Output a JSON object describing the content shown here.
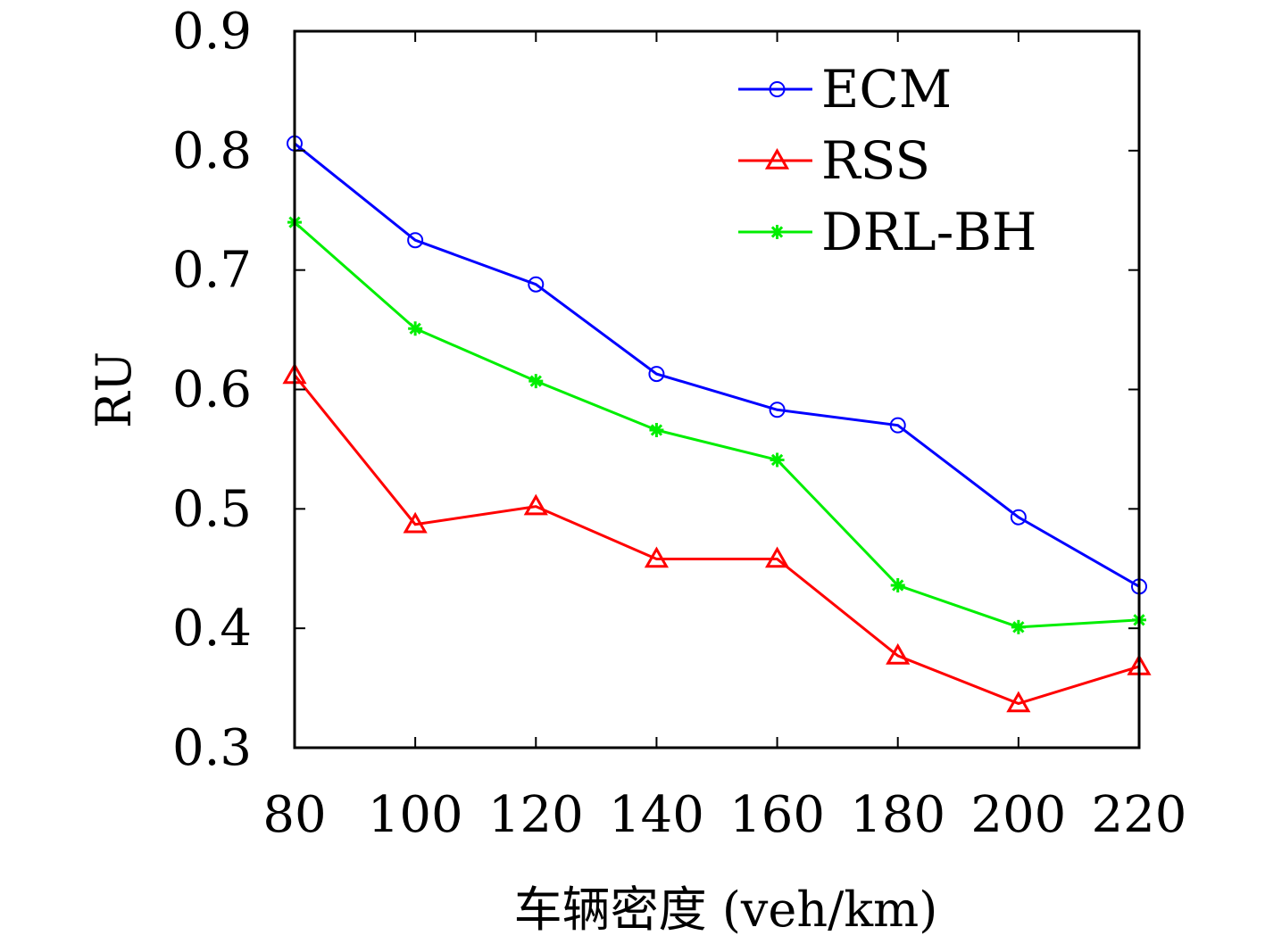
{
  "chart_data": {
    "type": "line",
    "title": "",
    "xlabel": "车辆密度 (veh/km)",
    "ylabel": "RU",
    "x": [
      80,
      100,
      120,
      140,
      160,
      180,
      200,
      220
    ],
    "xticks": [
      "80",
      "100",
      "120",
      "140",
      "160",
      "180",
      "200",
      "220"
    ],
    "yticks": [
      "0.3",
      "0.4",
      "0.5",
      "0.6",
      "0.7",
      "0.8",
      "0.9"
    ],
    "xlim": [
      80,
      220
    ],
    "ylim": [
      0.3,
      0.9
    ],
    "grid": false,
    "legend_position": "top-right",
    "series": [
      {
        "name": "ECM",
        "color": "#0000ff",
        "marker": "circle",
        "values": [
          0.806,
          0.725,
          0.688,
          0.613,
          0.583,
          0.57,
          0.493,
          0.435
        ]
      },
      {
        "name": "RSS",
        "color": "#ff0000",
        "marker": "triangle",
        "values": [
          0.612,
          0.487,
          0.502,
          0.458,
          0.458,
          0.377,
          0.337,
          0.368
        ]
      },
      {
        "name": "DRL-BH",
        "color": "#00ee00",
        "marker": "star",
        "values": [
          0.74,
          0.651,
          0.607,
          0.566,
          0.541,
          0.436,
          0.401,
          0.407
        ]
      }
    ]
  }
}
